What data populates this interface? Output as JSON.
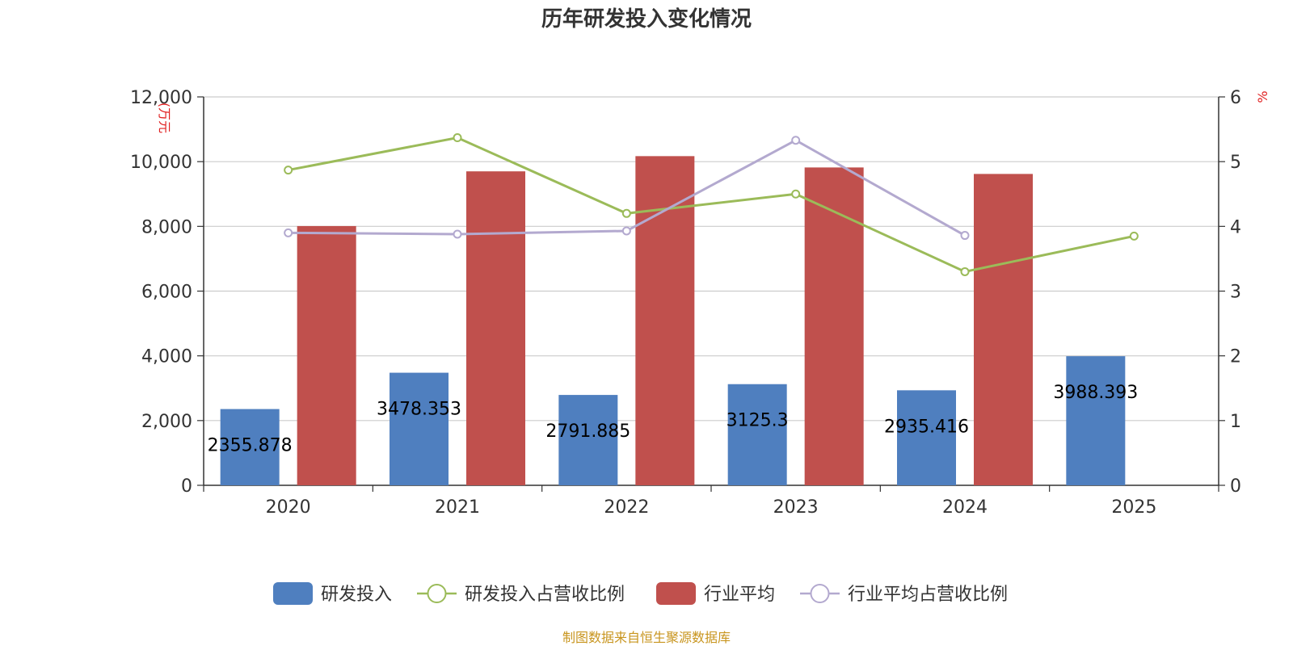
{
  "chart_data": {
    "type": "bar",
    "title": "历年研发投入变化情况",
    "categories": [
      "2020",
      "2021",
      "2022",
      "2023",
      "2024",
      "2025"
    ],
    "left_axis": {
      "unit": "(万元",
      "ylim": [
        0,
        12000
      ],
      "ticks": [
        "0",
        "2,000",
        "4,000",
        "6,000",
        "8,000",
        "10,000",
        "12,000"
      ]
    },
    "right_axis": {
      "unit": "%",
      "ylim": [
        0,
        6
      ],
      "ticks": [
        "0",
        "1",
        "2",
        "3",
        "4",
        "5",
        "6"
      ]
    },
    "series": [
      {
        "name": "研发投入",
        "type": "bar",
        "axis": "left",
        "color": "#4f7fbf",
        "values": [
          2355.878,
          3478.353,
          2791.885,
          3125.3,
          2935.416,
          3988.393
        ],
        "labels": [
          "2355.878",
          "3478.353",
          "2791.885",
          "3125.3",
          "2935.416",
          "3988.393"
        ]
      },
      {
        "name": "研发投入占营收比例",
        "type": "line",
        "axis": "right",
        "color": "#9bbb59",
        "values": [
          4.87,
          5.37,
          4.2,
          4.5,
          3.3,
          3.85
        ]
      },
      {
        "name": "行业平均",
        "type": "bar",
        "axis": "left",
        "color": "#c0504d",
        "values": [
          8010,
          9700,
          10170,
          9820,
          9620,
          null
        ]
      },
      {
        "name": "行业平均占营收比例",
        "type": "line",
        "axis": "right",
        "color": "#b3a9cf",
        "values": [
          3.9,
          3.88,
          3.93,
          5.33,
          3.86,
          null
        ]
      }
    ],
    "grid": true,
    "legend_position": "bottom"
  },
  "source": "制图数据来自恒生聚源数据库"
}
